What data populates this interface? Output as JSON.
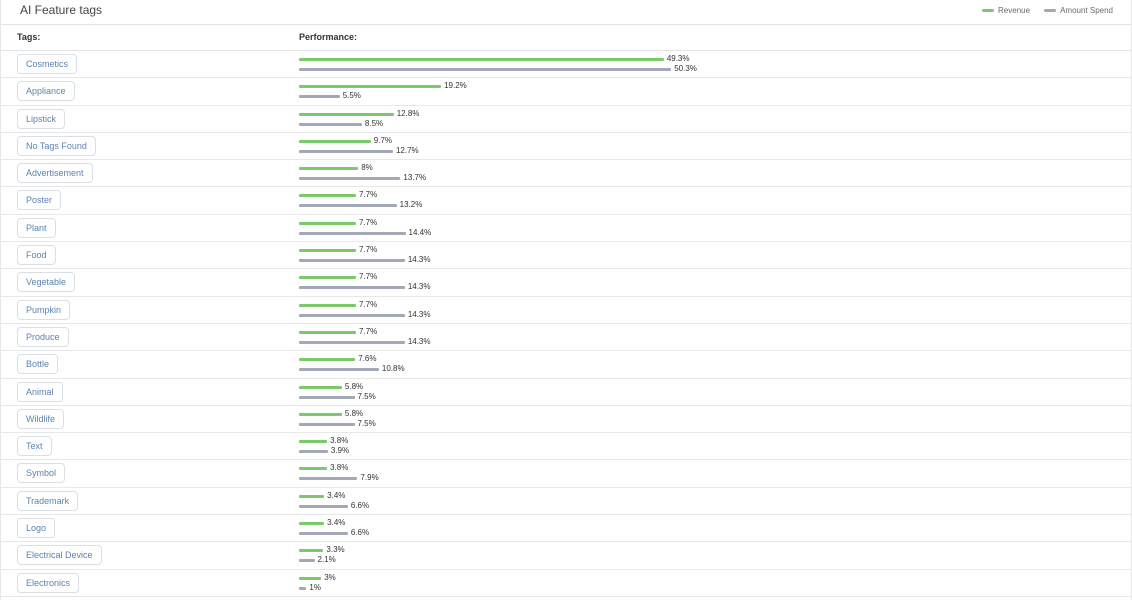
{
  "header": {
    "title": "AI Feature tags",
    "legend": [
      {
        "label": "Revenue",
        "color": "#7cc96b"
      },
      {
        "label": "Amount Spend",
        "color": "#a2a8b5"
      }
    ]
  },
  "columns": {
    "tags": "Tags:",
    "performance": "Performance:"
  },
  "chart_data": {
    "type": "bar",
    "orientation": "horizontal",
    "categories": [
      "Cosmetics",
      "Appliance",
      "Lipstick",
      "No Tags Found",
      "Advertisement",
      "Poster",
      "Plant",
      "Food",
      "Vegetable",
      "Pumpkin",
      "Produce",
      "Bottle",
      "Animal",
      "Wildlife",
      "Text",
      "Symbol",
      "Trademark",
      "Logo",
      "Electrical Device",
      "Electronics"
    ],
    "series": [
      {
        "name": "Revenue",
        "color": "#7cc96b",
        "values": [
          49.3,
          19.2,
          12.8,
          9.7,
          8,
          7.7,
          7.7,
          7.7,
          7.7,
          7.7,
          7.7,
          7.6,
          5.8,
          5.8,
          3.8,
          3.8,
          3.4,
          3.4,
          3.3,
          3
        ]
      },
      {
        "name": "Amount Spend",
        "color": "#a2a8b5",
        "values": [
          50.3,
          5.5,
          8.5,
          12.7,
          13.7,
          13.2,
          14.4,
          14.3,
          14.3,
          14.3,
          14.3,
          10.8,
          7.5,
          7.5,
          3.9,
          7.9,
          6.6,
          6.6,
          2.1,
          1
        ]
      }
    ],
    "revenue_labels": [
      "49.3%",
      "19.2%",
      "12.8%",
      "9.7%",
      "8%",
      "7.7%",
      "7.7%",
      "7.7%",
      "7.7%",
      "7.7%",
      "7.7%",
      "7.6%",
      "5.8%",
      "5.8%",
      "3.8%",
      "3.8%",
      "3.4%",
      "3.4%",
      "3.3%",
      "3%"
    ],
    "spend_labels": [
      "50.3%",
      "5.5%",
      "8.5%",
      "12.7%",
      "13.7%",
      "13.2%",
      "14.4%",
      "14.3%",
      "14.3%",
      "14.3%",
      "14.3%",
      "10.8%",
      "7.5%",
      "7.5%",
      "3.9%",
      "7.9%",
      "6.6%",
      "6.6%",
      "2.1%",
      "1%"
    ]
  }
}
